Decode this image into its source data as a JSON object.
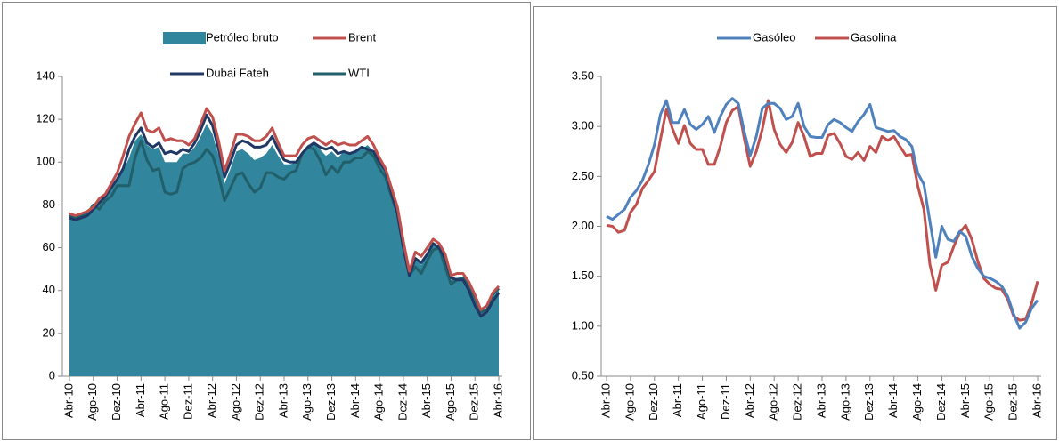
{
  "chart_data": [
    {
      "type": "line",
      "categories": [
        "Abr-10",
        null,
        null,
        null,
        "Ago-10",
        null,
        null,
        null,
        "Dez-10",
        null,
        null,
        null,
        "Abr-11",
        null,
        null,
        null,
        "Ago-11",
        null,
        null,
        null,
        "Dez-11",
        null,
        null,
        null,
        "Abr-12",
        null,
        null,
        null,
        "Ago-12",
        null,
        null,
        null,
        "Dez-12",
        null,
        null,
        null,
        "Abr-13",
        null,
        null,
        null,
        "Ago-13",
        null,
        null,
        null,
        "Dez-13",
        null,
        null,
        null,
        "Abr-14",
        null,
        null,
        null,
        "Ago-14",
        null,
        null,
        null,
        "Dez-14",
        null,
        null,
        null,
        "Abr-15",
        null,
        null,
        null,
        "Ago-15",
        null,
        null,
        null,
        "Dez-15",
        null,
        null,
        null,
        "Abr-16"
      ],
      "ylim": [
        0,
        140
      ],
      "yticks": [
        0,
        20,
        40,
        60,
        80,
        100,
        120,
        140
      ],
      "series": [
        {
          "name": "Petróleo bruto",
          "type": "area",
          "color": "#31859c",
          "values": [
            75,
            74,
            75,
            76,
            79,
            80,
            84,
            87,
            92,
            96,
            102,
            110,
            113,
            108,
            106,
            107,
            100,
            100,
            100,
            104,
            104,
            107,
            112,
            118,
            113,
            103,
            90,
            97,
            105,
            106,
            104,
            101,
            102,
            104,
            108,
            103,
            99,
            99,
            100,
            105,
            108,
            109,
            106,
            103,
            105,
            102,
            105,
            104,
            105,
            106,
            108,
            105,
            100,
            95,
            86,
            77,
            61,
            48,
            55,
            52,
            57,
            62,
            61,
            54,
            45,
            46,
            46,
            42,
            36,
            30,
            31,
            37,
            40
          ]
        },
        {
          "name": "Brent",
          "color": "#c0504d",
          "values": [
            76,
            75,
            76,
            77,
            79,
            83,
            85,
            90,
            95,
            103,
            112,
            118,
            123,
            115,
            114,
            116,
            110,
            111,
            110,
            110,
            108,
            111,
            118,
            125,
            121,
            110,
            96,
            104,
            113,
            113,
            112,
            110,
            110,
            112,
            116,
            109,
            103,
            103,
            103,
            108,
            111,
            112,
            110,
            108,
            110,
            108,
            109,
            108,
            108,
            110,
            112,
            108,
            102,
            97,
            88,
            79,
            63,
            49,
            58,
            56,
            60,
            64,
            62,
            57,
            47,
            48,
            48,
            44,
            38,
            31,
            33,
            39,
            42
          ]
        },
        {
          "name": "Dubai Fateh",
          "color": "#1f3864",
          "values": [
            74,
            73,
            74,
            75,
            78,
            81,
            84,
            88,
            92,
            97,
            106,
            112,
            116,
            109,
            107,
            109,
            104,
            105,
            104,
            106,
            105,
            109,
            115,
            122,
            117,
            106,
            93,
            100,
            108,
            110,
            109,
            107,
            107,
            108,
            112,
            106,
            101,
            100,
            100,
            104,
            107,
            109,
            107,
            106,
            107,
            104,
            105,
            104,
            105,
            107,
            106,
            105,
            100,
            96,
            86,
            76,
            60,
            47,
            55,
            53,
            57,
            62,
            60,
            55,
            46,
            45,
            45,
            40,
            33,
            28,
            30,
            35,
            39
          ]
        },
        {
          "name": "WTI",
          "color": "#215f6a",
          "values": [
            75,
            74,
            75,
            76,
            80,
            78,
            82,
            84,
            89,
            89,
            89,
            102,
            110,
            101,
            96,
            97,
            86,
            85,
            86,
            97,
            99,
            100,
            102,
            106,
            103,
            94,
            82,
            88,
            94,
            95,
            90,
            86,
            88,
            95,
            95,
            93,
            92,
            95,
            96,
            104,
            107,
            106,
            101,
            94,
            98,
            95,
            100,
            100,
            102,
            102,
            105,
            103,
            97,
            93,
            84,
            76,
            60,
            47,
            51,
            48,
            54,
            59,
            60,
            51,
            43,
            45,
            46,
            42,
            37,
            30,
            31,
            38,
            41
          ]
        }
      ]
    },
    {
      "type": "line",
      "categories": [
        "Abr-10",
        null,
        null,
        null,
        "Ago-10",
        null,
        null,
        null,
        "Dez-10",
        null,
        null,
        null,
        "Abr-11",
        null,
        null,
        null,
        "Ago-11",
        null,
        null,
        null,
        "Dez-11",
        null,
        null,
        null,
        "Abr-12",
        null,
        null,
        null,
        "Ago-12",
        null,
        null,
        null,
        "Dez-12",
        null,
        null,
        null,
        "Abr-13",
        null,
        null,
        null,
        "Ago-13",
        null,
        null,
        null,
        "Dez-13",
        null,
        null,
        null,
        "Abr-14",
        null,
        null,
        null,
        "Ago-14",
        null,
        null,
        null,
        "Dez-14",
        null,
        null,
        null,
        "Abr-15",
        null,
        null,
        null,
        "Ago-15",
        null,
        null,
        null,
        "Dez-15",
        null,
        null,
        null,
        "Abr-16"
      ],
      "ylim": [
        0.5,
        3.5
      ],
      "yticks": [
        {
          "value": 0.5,
          "label": "0.50"
        },
        {
          "value": 1,
          "label": "1.00"
        },
        {
          "value": 1.5,
          "label": "1.50"
        },
        {
          "value": 2,
          "label": "2.00"
        },
        {
          "value": 2.5,
          "label": "2.50"
        },
        {
          "value": 3,
          "label": "3.00"
        },
        {
          "value": 3.5,
          "label": "3.50"
        }
      ],
      "series": [
        {
          "name": "Gasóleo",
          "color": "#4f81bd",
          "values": [
            2.1,
            2.07,
            2.12,
            2.17,
            2.29,
            2.36,
            2.46,
            2.62,
            2.82,
            3.12,
            3.26,
            3.04,
            3.04,
            3.17,
            3.02,
            2.97,
            3.02,
            3.1,
            2.94,
            3.1,
            3.22,
            3.28,
            3.23,
            2.95,
            2.71,
            2.9,
            3.18,
            3.23,
            3.23,
            3.18,
            3.07,
            3.1,
            3.23,
            3.0,
            2.9,
            2.89,
            2.89,
            3.02,
            3.07,
            3.04,
            2.99,
            2.95,
            3.05,
            3.12,
            3.22,
            2.99,
            2.97,
            2.95,
            2.96,
            2.9,
            2.87,
            2.8,
            2.53,
            2.42,
            2.05,
            1.69,
            2.0,
            1.87,
            1.85,
            1.95,
            1.9,
            1.7,
            1.58,
            1.5,
            1.48,
            1.45,
            1.4,
            1.3,
            1.12,
            0.98,
            1.04,
            1.18,
            1.26
          ]
        },
        {
          "name": "Gasolina",
          "color": "#c0504d",
          "values": [
            2.01,
            2.0,
            1.94,
            1.96,
            2.14,
            2.22,
            2.38,
            2.46,
            2.55,
            2.87,
            3.17,
            2.98,
            2.83,
            3.01,
            2.83,
            2.77,
            2.77,
            2.62,
            2.62,
            2.8,
            3.04,
            3.16,
            3.2,
            2.88,
            2.6,
            2.75,
            2.97,
            3.26,
            2.97,
            2.82,
            2.74,
            2.84,
            3.04,
            2.9,
            2.7,
            2.73,
            2.73,
            2.91,
            2.93,
            2.83,
            2.7,
            2.67,
            2.74,
            2.66,
            2.8,
            2.74,
            2.9,
            2.86,
            2.9,
            2.8,
            2.71,
            2.72,
            2.4,
            2.17,
            1.62,
            1.36,
            1.61,
            1.64,
            1.8,
            1.94,
            2.01,
            1.87,
            1.65,
            1.48,
            1.42,
            1.38,
            1.37,
            1.27,
            1.1,
            1.06,
            1.07,
            1.23,
            1.45
          ]
        }
      ]
    }
  ]
}
